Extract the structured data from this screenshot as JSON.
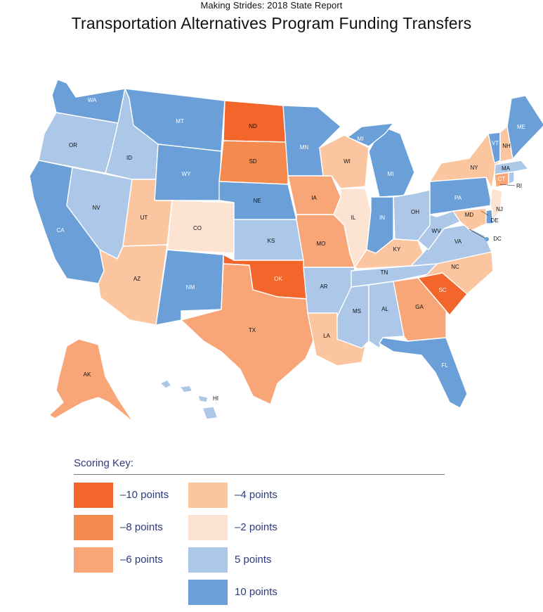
{
  "header": {
    "supertitle": "Making Strides:  2018 State Report",
    "title": "Transportation Alternatives Program Funding Transfers"
  },
  "colors": {
    "-10": "#f2652b",
    "-8": "#f58a4f",
    "-6": "#f8a577",
    "-4": "#fbc5a0",
    "-2": "#fde3d2",
    "5": "#adc7e8",
    "10": "#6a9fd8"
  },
  "states": [
    {
      "abbr": "WA",
      "score": 10
    },
    {
      "abbr": "OR",
      "score": 5
    },
    {
      "abbr": "CA",
      "score": 10
    },
    {
      "abbr": "NV",
      "score": 5
    },
    {
      "abbr": "ID",
      "score": 5
    },
    {
      "abbr": "MT",
      "score": 10
    },
    {
      "abbr": "WY",
      "score": 10
    },
    {
      "abbr": "UT",
      "score": -4
    },
    {
      "abbr": "AZ",
      "score": -4
    },
    {
      "abbr": "CO",
      "score": -2
    },
    {
      "abbr": "NM",
      "score": 10
    },
    {
      "abbr": "ND",
      "score": -10
    },
    {
      "abbr": "SD",
      "score": -8
    },
    {
      "abbr": "NE",
      "score": 10
    },
    {
      "abbr": "KS",
      "score": 5
    },
    {
      "abbr": "OK",
      "score": -10
    },
    {
      "abbr": "TX",
      "score": -6
    },
    {
      "abbr": "MN",
      "score": 10
    },
    {
      "abbr": "IA",
      "score": -6
    },
    {
      "abbr": "MO",
      "score": -6
    },
    {
      "abbr": "AR",
      "score": 5
    },
    {
      "abbr": "LA",
      "score": -4
    },
    {
      "abbr": "WI",
      "score": -4
    },
    {
      "abbr": "IL",
      "score": -2
    },
    {
      "abbr": "MI",
      "score": 10
    },
    {
      "abbr": "IN",
      "score": 10
    },
    {
      "abbr": "OH",
      "score": 5
    },
    {
      "abbr": "KY",
      "score": -4
    },
    {
      "abbr": "TN",
      "score": 5
    },
    {
      "abbr": "MS",
      "score": 5
    },
    {
      "abbr": "AL",
      "score": 5
    },
    {
      "abbr": "GA",
      "score": -6
    },
    {
      "abbr": "FL",
      "score": 10
    },
    {
      "abbr": "SC",
      "score": -10
    },
    {
      "abbr": "NC",
      "score": -4
    },
    {
      "abbr": "VA",
      "score": 5
    },
    {
      "abbr": "WV",
      "score": 5
    },
    {
      "abbr": "PA",
      "score": 10
    },
    {
      "abbr": "NY",
      "score": -4
    },
    {
      "abbr": "NJ",
      "score": -2
    },
    {
      "abbr": "DE",
      "score": 10
    },
    {
      "abbr": "MD",
      "score": -4
    },
    {
      "abbr": "DC",
      "score": 10
    },
    {
      "abbr": "CT",
      "score": -6
    },
    {
      "abbr": "RI",
      "score": 5
    },
    {
      "abbr": "MA",
      "score": 5
    },
    {
      "abbr": "VT",
      "score": 10
    },
    {
      "abbr": "NH",
      "score": -4
    },
    {
      "abbr": "ME",
      "score": 10
    },
    {
      "abbr": "AK",
      "score": -6
    },
    {
      "abbr": "HI",
      "score": 5
    }
  ],
  "legend": {
    "title": "Scoring Key:",
    "items": [
      {
        "label": "–10 points",
        "score": -10
      },
      {
        "label": "–8 points",
        "score": -8
      },
      {
        "label": "–6 points",
        "score": -6
      },
      {
        "label": "–4 points",
        "score": -4
      },
      {
        "label": "–2 points",
        "score": -2
      },
      {
        "label": "5 points",
        "score": 5
      },
      {
        "label": "10 points",
        "score": 10
      }
    ]
  }
}
